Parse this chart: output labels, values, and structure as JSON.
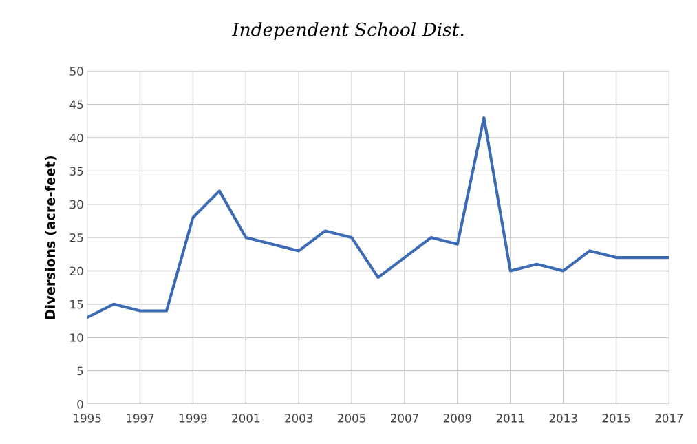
{
  "chart_data": {
    "type": "line",
    "title": "Independent School Dist.",
    "ylabel": "Diversions (acre-feet)",
    "x": [
      1995,
      1996,
      1997,
      1998,
      1999,
      2000,
      2001,
      2002,
      2003,
      2004,
      2005,
      2006,
      2007,
      2008,
      2009,
      2010,
      2011,
      2012,
      2013,
      2014,
      2015,
      2016,
      2017
    ],
    "series": [
      {
        "color": "#3d6bb3",
        "values": [
          13,
          15,
          14,
          14,
          28,
          32,
          25,
          24,
          23,
          26,
          25,
          19,
          22,
          25,
          24,
          43,
          20,
          21,
          20,
          23,
          22,
          22,
          22
        ]
      }
    ],
    "xlim": [
      1995,
      2017
    ],
    "xticks": [
      1995,
      1997,
      1999,
      2001,
      2003,
      2005,
      2007,
      2009,
      2011,
      2013,
      2015,
      2017
    ],
    "ylim": [
      0,
      50
    ],
    "yticks": [
      0,
      5,
      10,
      15,
      20,
      25,
      30,
      35,
      40,
      45,
      50
    ],
    "grid": true,
    "marker": "none",
    "line_style": "solid",
    "legend": false
  }
}
